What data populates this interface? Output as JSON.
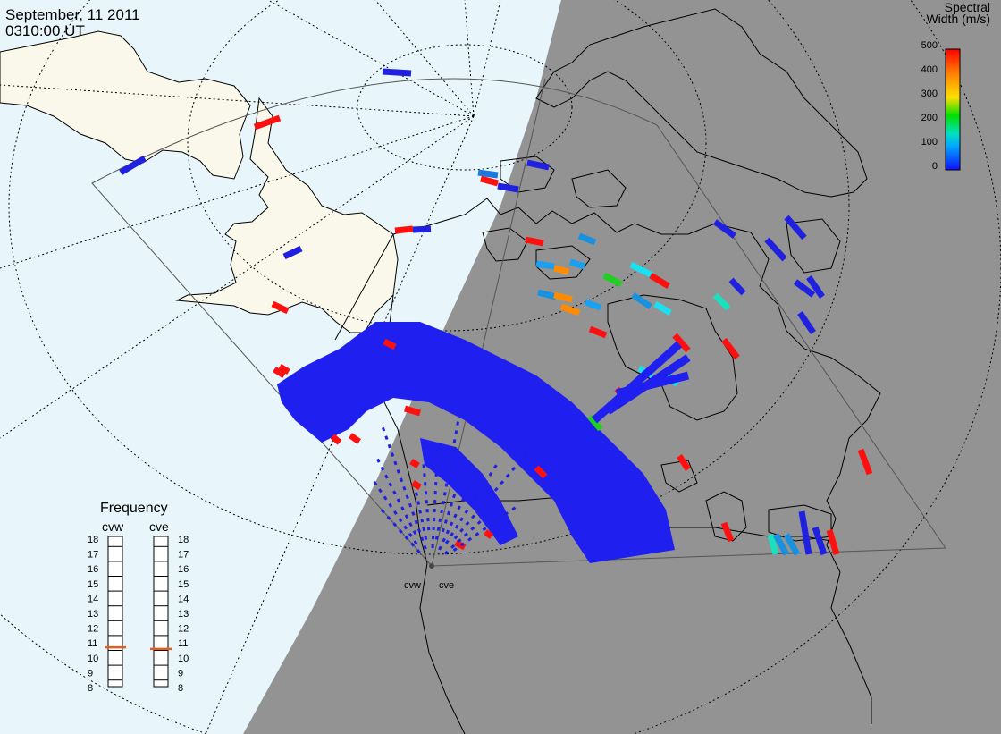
{
  "header": {
    "date": "September, 11 2011",
    "time": "0310:00 UT"
  },
  "colorbar": {
    "title_line1": "Spectral",
    "title_line2": "Width (m/s)",
    "ticks": [
      "500",
      "400",
      "300",
      "200",
      "100",
      "0"
    ],
    "min": 0,
    "max": 500
  },
  "frequency": {
    "title": "Frequency",
    "stations": [
      {
        "name": "cvw",
        "value_mhz": 10.7
      },
      {
        "name": "cve",
        "value_mhz": 10.6
      }
    ],
    "ticks": [
      "18",
      "17",
      "16",
      "15",
      "14",
      "13",
      "12",
      "11",
      "10",
      "9",
      "8"
    ]
  },
  "radar_sites": [
    "cvw",
    "cve"
  ],
  "colors": {
    "ocean": "#e8f6fb",
    "land_day": "#faf8ea",
    "night": "#939393",
    "scatter_low": "#1f1ff0",
    "scatter_high": "#ff1010",
    "freq_marker": "#e06020"
  }
}
